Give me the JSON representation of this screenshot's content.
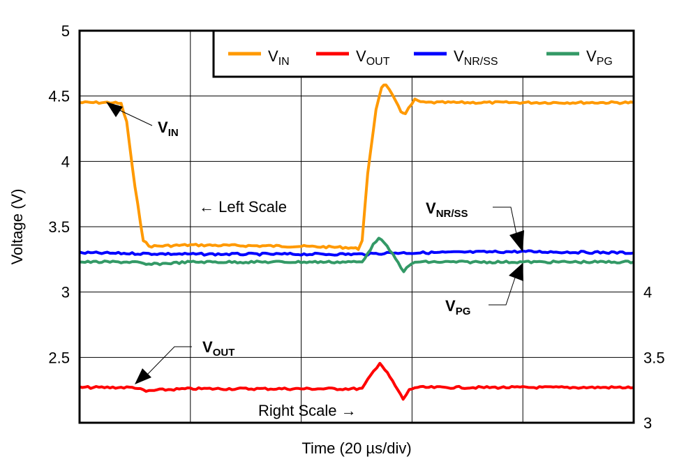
{
  "chart_data": {
    "type": "line",
    "xlabel": "Time (20 µs/div)",
    "ylabel": "Voltage (V)",
    "xlim": [
      0,
      100
    ],
    "ylim": [
      2,
      5
    ],
    "y2lim": [
      3,
      6
    ],
    "yticks": [
      "5",
      "4.5",
      "4",
      "3.5",
      "3",
      "2.5"
    ],
    "y2ticks": [
      "4",
      "3.5",
      "3"
    ],
    "grid": true,
    "legend_position": "top-right",
    "series": [
      {
        "name": "V",
        "sub": "IN",
        "color": "#FF9900",
        "axis": "left",
        "x": [
          0,
          6,
          7.5,
          8.5,
          10,
          11.5,
          12.5,
          20,
          40,
          49,
          50.3,
          51,
          52,
          53.5,
          54.5,
          55.3,
          56.5,
          58,
          58.8,
          60.5,
          62,
          100
        ],
        "y": [
          4.45,
          4.45,
          4.44,
          4.3,
          3.8,
          3.4,
          3.35,
          3.36,
          3.35,
          3.34,
          3.33,
          3.4,
          3.9,
          4.4,
          4.57,
          4.59,
          4.5,
          4.38,
          4.37,
          4.47,
          4.45,
          4.45
        ]
      },
      {
        "name": "V",
        "sub": "OUT",
        "color": "#FF0000",
        "axis": "right",
        "x": [
          0,
          10,
          12,
          14,
          20,
          40,
          51,
          52.5,
          54.2,
          56,
          58.4,
          59.5,
          60.5,
          100
        ],
        "y": [
          3.27,
          3.27,
          3.24,
          3.25,
          3.26,
          3.26,
          3.26,
          3.36,
          3.46,
          3.35,
          3.18,
          3.25,
          3.27,
          3.27
        ]
      },
      {
        "name": "V",
        "sub": "NR/SS",
        "color": "#0000FF",
        "axis": "left",
        "x": [
          0,
          20,
          40,
          52,
          56,
          60,
          80,
          100
        ],
        "y": [
          3.3,
          3.29,
          3.29,
          3.29,
          3.3,
          3.3,
          3.31,
          3.3
        ]
      },
      {
        "name": "V",
        "sub": "PG",
        "color": "#339966",
        "axis": "left",
        "x": [
          0,
          10,
          12,
          20,
          40,
          51,
          52,
          54,
          56,
          58.5,
          59.5,
          60.5,
          100
        ],
        "y": [
          3.23,
          3.23,
          3.21,
          3.23,
          3.23,
          3.23,
          3.3,
          3.42,
          3.32,
          3.16,
          3.2,
          3.23,
          3.23
        ]
      }
    ],
    "annotations": {
      "vin": {
        "main": "V",
        "sub": "IN"
      },
      "vout": {
        "main": "V",
        "sub": "OUT"
      },
      "vnrss": {
        "main": "V",
        "sub": "NR/SS"
      },
      "vpg": {
        "main": "V",
        "sub": "PG"
      },
      "left_scale": "← Left Scale",
      "right_scale": "Right Scale →"
    }
  }
}
